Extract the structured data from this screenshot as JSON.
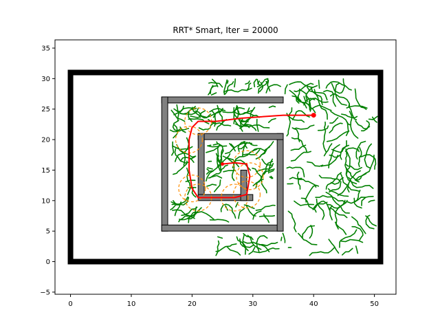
{
  "chart_data": {
    "type": "scatter",
    "title": "RRT* Smart, Iter = 20000",
    "xlabel": "",
    "ylabel": "",
    "xlim": [
      -2.55,
      53.55
    ],
    "ylim": [
      -5.35,
      36.35
    ],
    "xticks": [
      0,
      10,
      20,
      30,
      40,
      50
    ],
    "yticks": [
      -5,
      0,
      5,
      10,
      15,
      20,
      25,
      30,
      35
    ],
    "grid": false,
    "colors": {
      "boundary": "#000000",
      "obstacle": "#808080",
      "tree": "#008000",
      "path": "#ff0000",
      "beacons": "#ff8c00",
      "goal": "#ff0000"
    },
    "boundary": {
      "x0": 0,
      "y0": 0,
      "x1": 51,
      "y1": 31
    },
    "obstacles": [
      {
        "x": 15,
        "y": 26,
        "w": 20,
        "h": 1
      },
      {
        "x": 15,
        "y": 5,
        "w": 1,
        "h": 22
      },
      {
        "x": 15,
        "y": 5,
        "w": 20,
        "h": 1
      },
      {
        "x": 34,
        "y": 5,
        "w": 1,
        "h": 16
      },
      {
        "x": 21,
        "y": 20,
        "w": 14,
        "h": 1
      },
      {
        "x": 21,
        "y": 11,
        "w": 1,
        "h": 10
      },
      {
        "x": 21,
        "y": 10,
        "w": 9,
        "h": 1
      },
      {
        "x": 28,
        "y": 10,
        "w": 1,
        "h": 5
      }
    ],
    "path": [
      [
        40,
        24
      ],
      [
        35,
        24
      ],
      [
        28,
        23.5
      ],
      [
        24,
        23
      ],
      [
        21,
        23
      ],
      [
        20,
        22
      ],
      [
        19.5,
        20
      ],
      [
        19.5,
        15
      ],
      [
        20,
        12
      ],
      [
        21,
        10.5
      ],
      [
        24,
        10.5
      ],
      [
        27,
        10.5
      ],
      [
        29,
        11
      ],
      [
        29.5,
        14
      ],
      [
        29,
        16
      ],
      [
        27,
        16.2
      ],
      [
        25,
        16
      ]
    ],
    "beacons": [
      [
        29,
        16
      ],
      [
        29.5,
        14
      ],
      [
        29,
        11
      ],
      [
        27,
        10.5
      ],
      [
        21,
        10.5
      ],
      [
        20,
        12
      ],
      [
        19.5,
        20
      ],
      [
        21,
        23
      ]
    ],
    "beacon_radius": 2.2,
    "start": [
      25,
      16
    ],
    "goal": [
      40,
      24
    ]
  }
}
